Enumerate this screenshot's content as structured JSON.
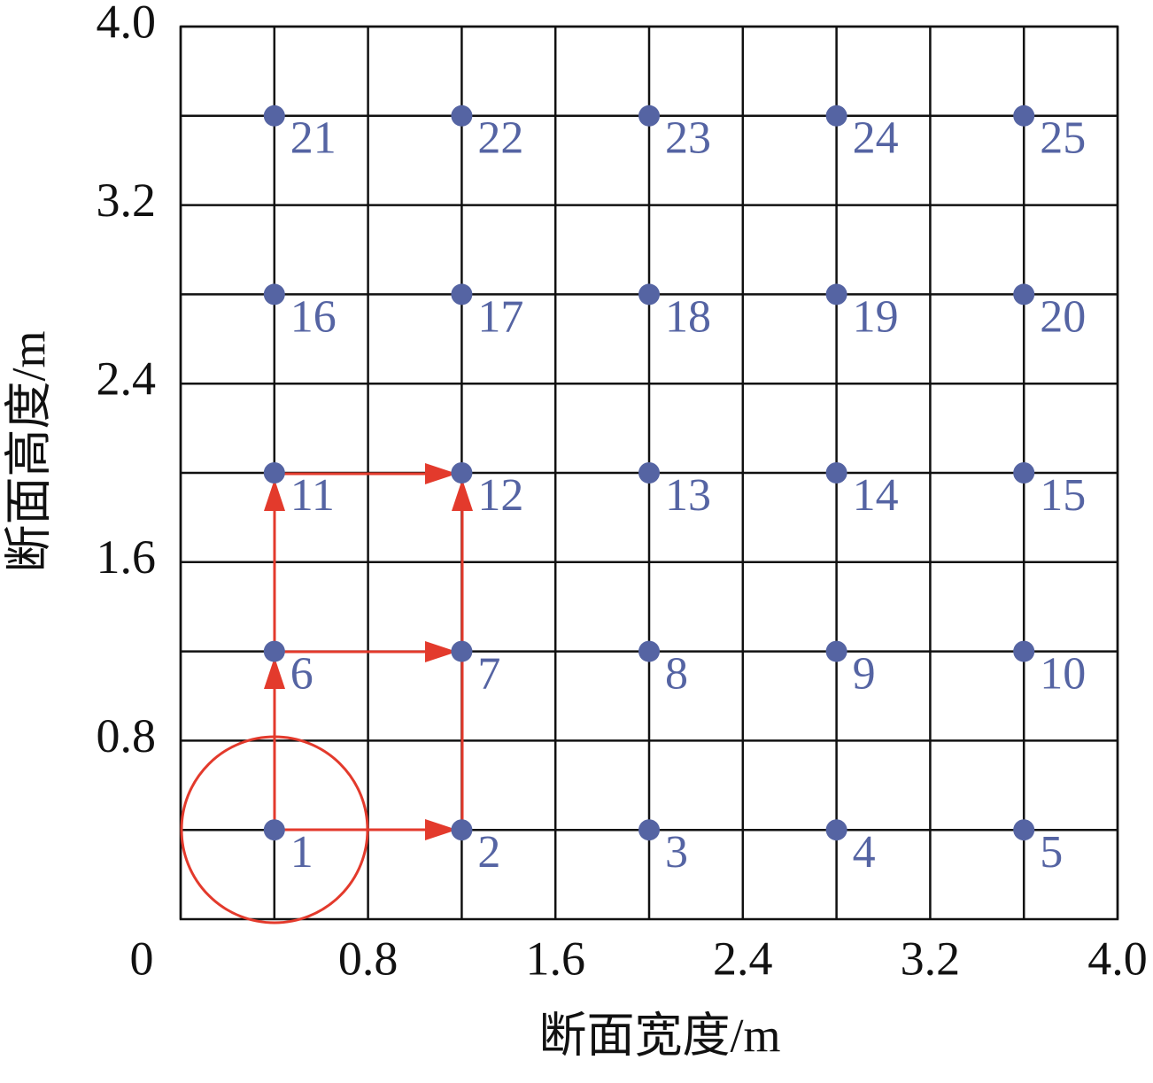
{
  "chart_data": {
    "type": "scatter",
    "xlabel": "断面宽度/m",
    "ylabel": "断面高度/m",
    "xlim": [
      0,
      4
    ],
    "ylim": [
      0,
      4
    ],
    "xticks": [
      0,
      0.8,
      1.6,
      2.4,
      3.2,
      {
        "value": 4,
        "label": "4.0"
      }
    ],
    "yticks": [
      0.8,
      1.6,
      2.4,
      3.2,
      {
        "value": 4,
        "label": "4.0"
      }
    ],
    "minor_ticks": [
      0.4,
      1.2,
      2.0,
      2.8,
      3.6
    ],
    "grid": true,
    "color": "#5564a3",
    "x": [
      0.4,
      1.2,
      2.0,
      2.8,
      3.6,
      0.4,
      1.2,
      2.0,
      2.8,
      3.6,
      0.4,
      1.2,
      2.0,
      2.8,
      3.6,
      0.4,
      1.2,
      2.0,
      2.8,
      3.6,
      0.4,
      1.2,
      2.0,
      2.8,
      3.6
    ],
    "y": [
      0.4,
      0.4,
      0.4,
      0.4,
      0.4,
      1.2,
      1.2,
      1.2,
      1.2,
      1.2,
      2.0,
      2.0,
      2.0,
      2.0,
      2.0,
      2.8,
      2.8,
      2.8,
      2.8,
      2.8,
      3.6,
      3.6,
      3.6,
      3.6,
      3.6
    ],
    "point_labels": [
      "1",
      "2",
      "3",
      "4",
      "5",
      "6",
      "7",
      "8",
      "9",
      "10",
      "11",
      "12",
      "13",
      "14",
      "15",
      "16",
      "17",
      "18",
      "19",
      "20",
      "21",
      "22",
      "23",
      "24",
      "25"
    ]
  }
}
